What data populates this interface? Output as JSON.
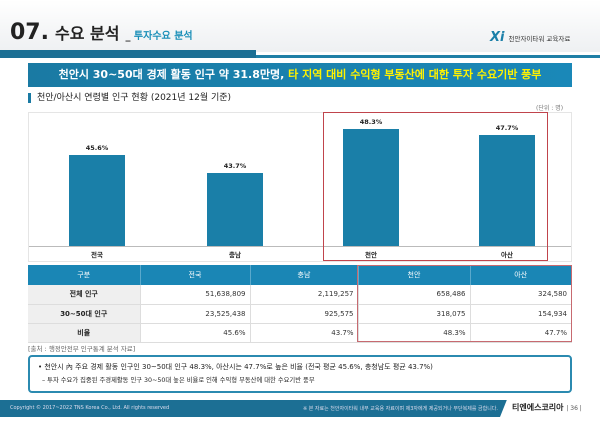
{
  "header": {
    "number": "07.",
    "title": "수요 분석",
    "separator": "_",
    "subtitle": "투자수요 분석",
    "logo": "Xi",
    "logo_text": "천안자이타워 교육자료"
  },
  "banner": {
    "text": "천안시 30~50대 경제 활동 인구 약 31.8만명, ",
    "highlight": "타 지역 대비 수익형 부동산에 대한 투자 수요기반 풍부"
  },
  "section_title": "천안/아산시 연령별 인구 현황 (2021년 12월 기준)",
  "unit": "(단위 : 명)",
  "chart_data": {
    "type": "bar",
    "categories": [
      "전국",
      "충남",
      "천안",
      "아산"
    ],
    "values": [
      45.6,
      43.7,
      48.3,
      47.7
    ],
    "value_labels": [
      "45.6%",
      "43.7%",
      "48.3%",
      "47.7%"
    ],
    "highlighted": [
      "천안",
      "아산"
    ],
    "color": "#1a7fa8",
    "highlight_border": "#c0444c"
  },
  "table": {
    "headers": [
      "구분",
      "전국",
      "충남",
      "천안",
      "아산"
    ],
    "rows": [
      [
        "전체 인구",
        "51,638,809",
        "2,119,257",
        "658,486",
        "324,580"
      ],
      [
        "30~50대 인구",
        "23,525,438",
        "925,575",
        "318,075",
        "154,934"
      ],
      [
        "비율",
        "45.6%",
        "43.7%",
        "48.3%",
        "47.7%"
      ]
    ]
  },
  "source": "[출처 : 행정안전부 인구통계 분석 자료]",
  "note": {
    "line1": "• 천안시 內 주요 경제 활동 인구인 30~50대 인구 48.3%, 아산시는 47.7%로 높은 비율 (전국 평균 45.6%, 충청남도 평균 43.7%)",
    "line2": "– 투자 수요가 집중된 주경제활동 인구 30~50대 높은 비율로 인해 수익형 부동산에 대한 수요기반 풍부"
  },
  "footer": {
    "copyright": "Copyright © 2017~2022 TNS Korea Co., Ltd.  All rights reserved",
    "disclaimer": "※ 본 자료는 천안자이타워 내부 교육용 자료이며 제3자에게 제공되거나 무단복제를 금합니다.",
    "company": "티엔에스코리아",
    "page": "| 36 |"
  }
}
